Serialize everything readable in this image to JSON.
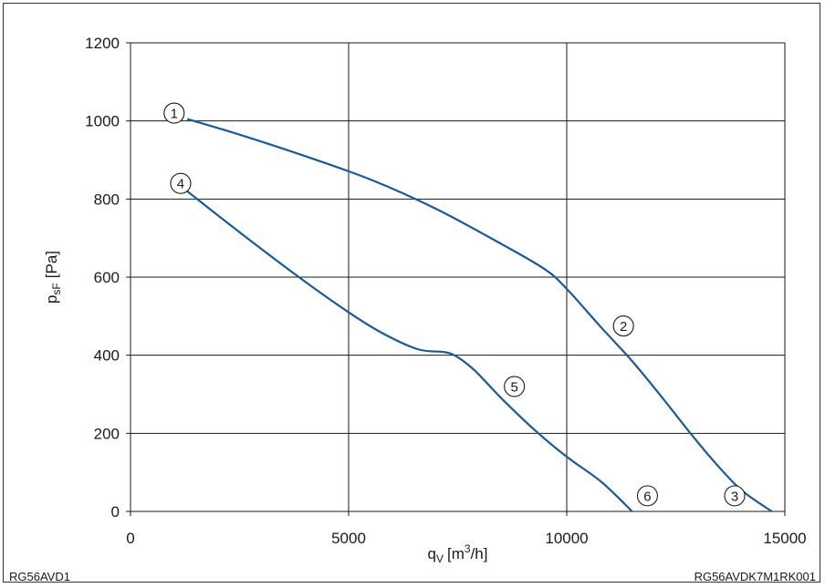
{
  "chart_data": {
    "type": "line",
    "xlabel": {
      "base": "q",
      "sub": "V",
      "unit_pre": "[m",
      "unit_sup": "3",
      "unit_post": "/h]"
    },
    "ylabel": {
      "base": "p",
      "sub": "sF",
      "unit": "[Pa]"
    },
    "xlim": [
      0,
      15000
    ],
    "ylim": [
      0,
      1200
    ],
    "xticks": [
      0,
      5000,
      10000,
      15000
    ],
    "yticks": [
      0,
      200,
      400,
      600,
      800,
      1000,
      1200
    ],
    "grid": true,
    "series": [
      {
        "color": "#1a5a96",
        "points": [
          [
            1300,
            1005
          ],
          [
            2500,
            965
          ],
          [
            4000,
            910
          ],
          [
            5500,
            850
          ],
          [
            7000,
            775
          ],
          [
            8500,
            685
          ],
          [
            9500,
            620
          ],
          [
            10000,
            570
          ],
          [
            10800,
            470
          ],
          [
            11500,
            385
          ],
          [
            12200,
            290
          ],
          [
            12800,
            205
          ],
          [
            13400,
            125
          ],
          [
            14000,
            55
          ],
          [
            14700,
            0
          ]
        ]
      },
      {
        "color": "#1a5a96",
        "points": [
          [
            1300,
            820
          ],
          [
            2500,
            715
          ],
          [
            3800,
            605
          ],
          [
            5000,
            510
          ],
          [
            5800,
            455
          ],
          [
            6600,
            415
          ],
          [
            7200,
            408
          ],
          [
            7500,
            395
          ],
          [
            7900,
            360
          ],
          [
            8500,
            290
          ],
          [
            9300,
            205
          ],
          [
            10000,
            140
          ],
          [
            10800,
            75
          ],
          [
            11500,
            0
          ]
        ]
      }
    ],
    "markers": [
      {
        "label": "1",
        "x": 1000,
        "y": 1020
      },
      {
        "label": "2",
        "x": 11300,
        "y": 475
      },
      {
        "label": "3",
        "x": 13850,
        "y": 40
      },
      {
        "label": "4",
        "x": 1150,
        "y": 840
      },
      {
        "label": "5",
        "x": 8800,
        "y": 320
      },
      {
        "label": "6",
        "x": 11850,
        "y": 40
      }
    ]
  },
  "footer": {
    "left": "RG56AVD1",
    "right": "RG56AVDK7M1RK001"
  }
}
